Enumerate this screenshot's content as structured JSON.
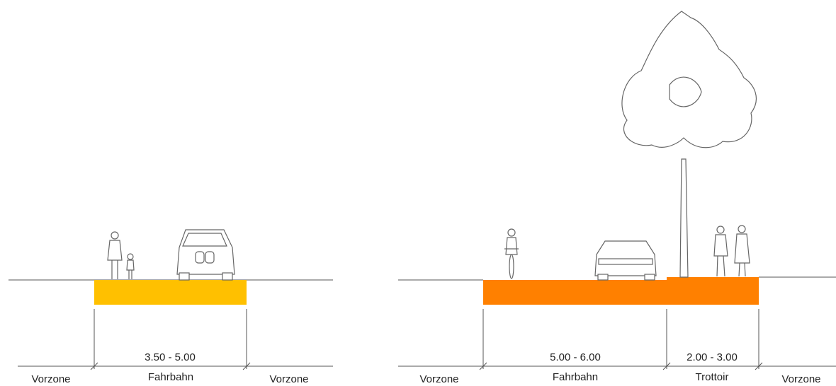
{
  "left": {
    "dimension": "3.50 - 5.00",
    "zones": [
      "Vorzone",
      "Fahrbahn",
      "Vorzone"
    ]
  },
  "right": {
    "dimensions": [
      "5.00 - 6.00",
      "2.00 - 3.00"
    ],
    "zones": [
      "Vorzone",
      "Fahrbahn",
      "Trottoir",
      "Vorzone"
    ]
  }
}
